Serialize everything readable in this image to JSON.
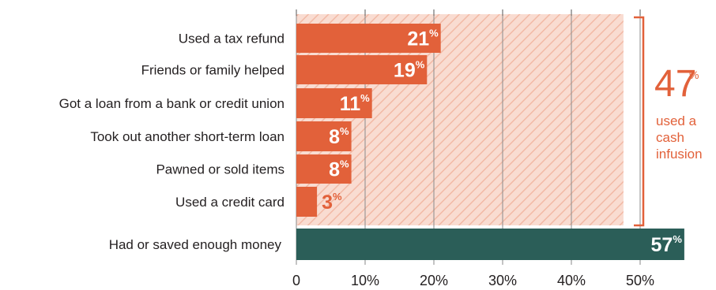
{
  "chart_data": {
    "type": "bar",
    "orientation": "horizontal",
    "categories": [
      "Used a tax refund",
      "Friends or family helped",
      "Got a loan from a bank or credit union",
      "Took out another short-term loan",
      "Pawned or sold items",
      "Used a credit card",
      "Had or saved enough money"
    ],
    "series": [
      {
        "values": [
          21,
          19,
          11,
          8,
          8,
          3,
          57
        ],
        "data_labels": [
          "21",
          "19",
          "11",
          "8",
          "8",
          "3",
          "57"
        ],
        "unit_suffix": "%"
      }
    ],
    "xlim": [
      0,
      57
    ],
    "x_ticks": [
      "0",
      "10%",
      "20%",
      "30%",
      "40%",
      "50%"
    ],
    "grid": true,
    "bracket_group": {
      "value": 47,
      "value_label": "47",
      "unit": "%",
      "text_lines": [
        "used a",
        "cash",
        "infusion"
      ]
    },
    "colors": {
      "orange": "#e2613a",
      "hatch_bg": "#f9dcd1",
      "hatch_line": "#f2b9a5",
      "green": "#2b5e58",
      "text": "#231f20"
    }
  }
}
